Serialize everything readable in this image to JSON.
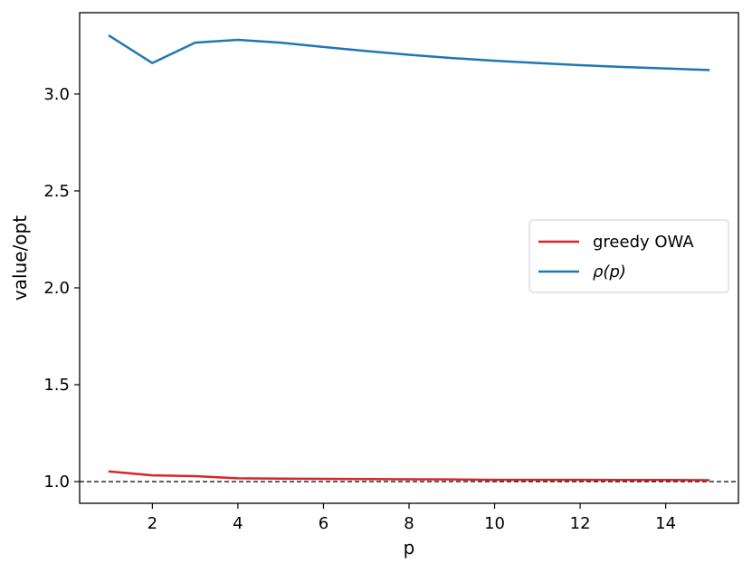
{
  "chart_data": {
    "type": "line",
    "xlabel": "p",
    "ylabel": "value/opt",
    "xlim": [
      0.3,
      15.7
    ],
    "ylim": [
      0.888,
      3.42
    ],
    "xticks": [
      2,
      4,
      6,
      8,
      10,
      12,
      14
    ],
    "yticks": [
      1.0,
      1.5,
      2.0,
      2.5,
      3.0
    ],
    "ytick_labels": [
      "1.0",
      "1.5",
      "2.0",
      "2.5",
      "3.0"
    ],
    "grid": false,
    "legend_position": "center-right",
    "reference_line": {
      "y": 1.0,
      "style": "dashed",
      "color": "#000000"
    },
    "series": [
      {
        "name": "greedy OWA",
        "color": "#d62728",
        "x": [
          1,
          2,
          3,
          4,
          5,
          6,
          7,
          8,
          9,
          10,
          11,
          12,
          13,
          14,
          15
        ],
        "y": [
          1.052,
          1.032,
          1.028,
          1.017,
          1.015,
          1.014,
          1.013,
          1.012,
          1.011,
          1.009,
          1.009,
          1.009,
          1.008,
          1.008,
          1.007
        ]
      },
      {
        "name": "ρ(p)",
        "color": "#1f77b4",
        "x": [
          1,
          2,
          3,
          4,
          5,
          6,
          7,
          8,
          9,
          10,
          11,
          12,
          13,
          14,
          15
        ],
        "y": [
          3.3,
          3.16,
          3.265,
          3.28,
          3.265,
          3.243,
          3.222,
          3.203,
          3.186,
          3.172,
          3.16,
          3.149,
          3.14,
          3.132,
          3.124
        ]
      }
    ]
  }
}
